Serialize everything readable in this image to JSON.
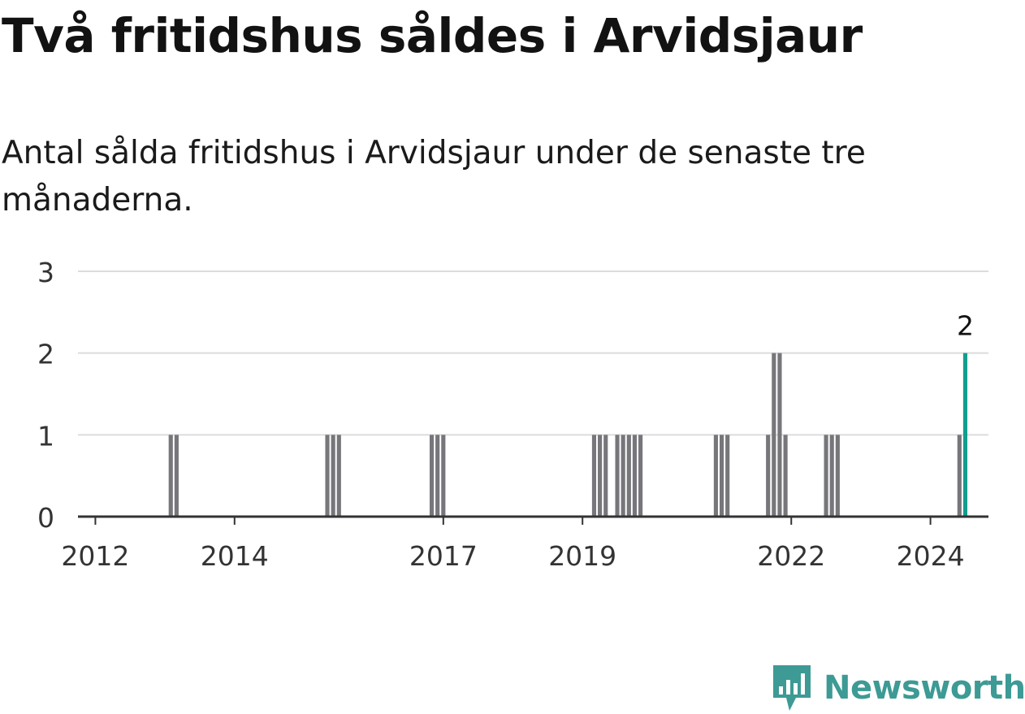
{
  "header": {
    "title": "Två fritidshus såldes i Arvidsjaur",
    "subtitle": "Antal sålda fritidshus i Arvidsjaur under de senaste tre månaderna."
  },
  "brand": {
    "name": "Newsworthy",
    "color": "#3d9a94",
    "icon": "bar-chart-speech-bubble-icon"
  },
  "colors": {
    "bar": "#77767b",
    "highlight": "#119e8f",
    "grid": "#dcdcdc",
    "axis": "#333333"
  },
  "chart_data": {
    "type": "bar",
    "title": "Två fritidshus såldes i Arvidsjaur",
    "subtitle": "Antal sålda fritidshus i Arvidsjaur under de senaste tre månaderna.",
    "xlabel": "",
    "ylabel": "",
    "x_unit": "month",
    "xlim": [
      "2011-10",
      "2024-11"
    ],
    "ylim": [
      0,
      3
    ],
    "y_ticks": [
      0,
      1,
      2,
      3
    ],
    "x_ticks": [
      "2012",
      "2014",
      "2017",
      "2019",
      "2022",
      "2024"
    ],
    "grid": true,
    "legend": "none",
    "highlight": {
      "x": "2024-07",
      "value": 2,
      "label": "2"
    },
    "points": [
      {
        "x": "2013-02",
        "value": 1
      },
      {
        "x": "2013-03",
        "value": 1
      },
      {
        "x": "2015-05",
        "value": 1
      },
      {
        "x": "2015-06",
        "value": 1
      },
      {
        "x": "2015-07",
        "value": 1
      },
      {
        "x": "2016-11",
        "value": 1
      },
      {
        "x": "2016-12",
        "value": 1
      },
      {
        "x": "2017-01",
        "value": 1
      },
      {
        "x": "2019-03",
        "value": 1
      },
      {
        "x": "2019-04",
        "value": 1
      },
      {
        "x": "2019-05",
        "value": 1
      },
      {
        "x": "2019-07",
        "value": 1
      },
      {
        "x": "2019-08",
        "value": 1
      },
      {
        "x": "2019-09",
        "value": 1
      },
      {
        "x": "2019-10",
        "value": 1
      },
      {
        "x": "2019-11",
        "value": 1
      },
      {
        "x": "2020-12",
        "value": 1
      },
      {
        "x": "2021-01",
        "value": 1
      },
      {
        "x": "2021-02",
        "value": 1
      },
      {
        "x": "2021-09",
        "value": 1
      },
      {
        "x": "2021-10",
        "value": 2
      },
      {
        "x": "2021-11",
        "value": 2
      },
      {
        "x": "2021-12",
        "value": 1
      },
      {
        "x": "2022-07",
        "value": 1
      },
      {
        "x": "2022-08",
        "value": 1
      },
      {
        "x": "2022-09",
        "value": 1
      },
      {
        "x": "2024-06",
        "value": 1
      },
      {
        "x": "2024-07",
        "value": 2
      }
    ]
  }
}
